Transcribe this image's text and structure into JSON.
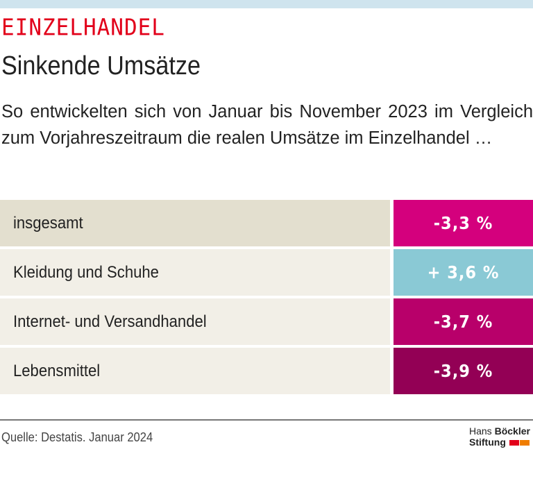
{
  "kicker": "EINZELHANDEL",
  "title": "Sinkende Umsätze",
  "intro": "So entwickelten sich von Januar bis November 2023 im Vergleich zum Vorjahreszeitraum die realen Umsätze im Einzelhandel …",
  "chart_data": {
    "type": "table",
    "rows": [
      {
        "label": "insgesamt",
        "value": -3.3,
        "display": "-3,3 %",
        "color": "#d4007d",
        "label_bg": "#e3dfcf"
      },
      {
        "label": "Kleidung und Schuhe",
        "value": 3.6,
        "display": "+ 3,6 %",
        "color": "#8ac9d5",
        "label_bg": "#f2efe7"
      },
      {
        "label": "Internet- und Versandhandel",
        "value": -3.7,
        "display": "-3,7 %",
        "color": "#b8006a",
        "label_bg": "#f2efe7"
      },
      {
        "label": "Lebensmittel",
        "value": -3.9,
        "display": "-3,9 %",
        "color": "#930055",
        "label_bg": "#f2efe7"
      }
    ]
  },
  "source": "Quelle: Destatis. Januar 2024",
  "logo": {
    "line1_a": "Hans",
    "line1_b": "Böckler",
    "line2": "Stiftung",
    "colors": [
      "#e2001a",
      "#f07d00"
    ]
  },
  "colors": {
    "kicker": "#e2001a",
    "topbar": "#cfe4ee"
  }
}
